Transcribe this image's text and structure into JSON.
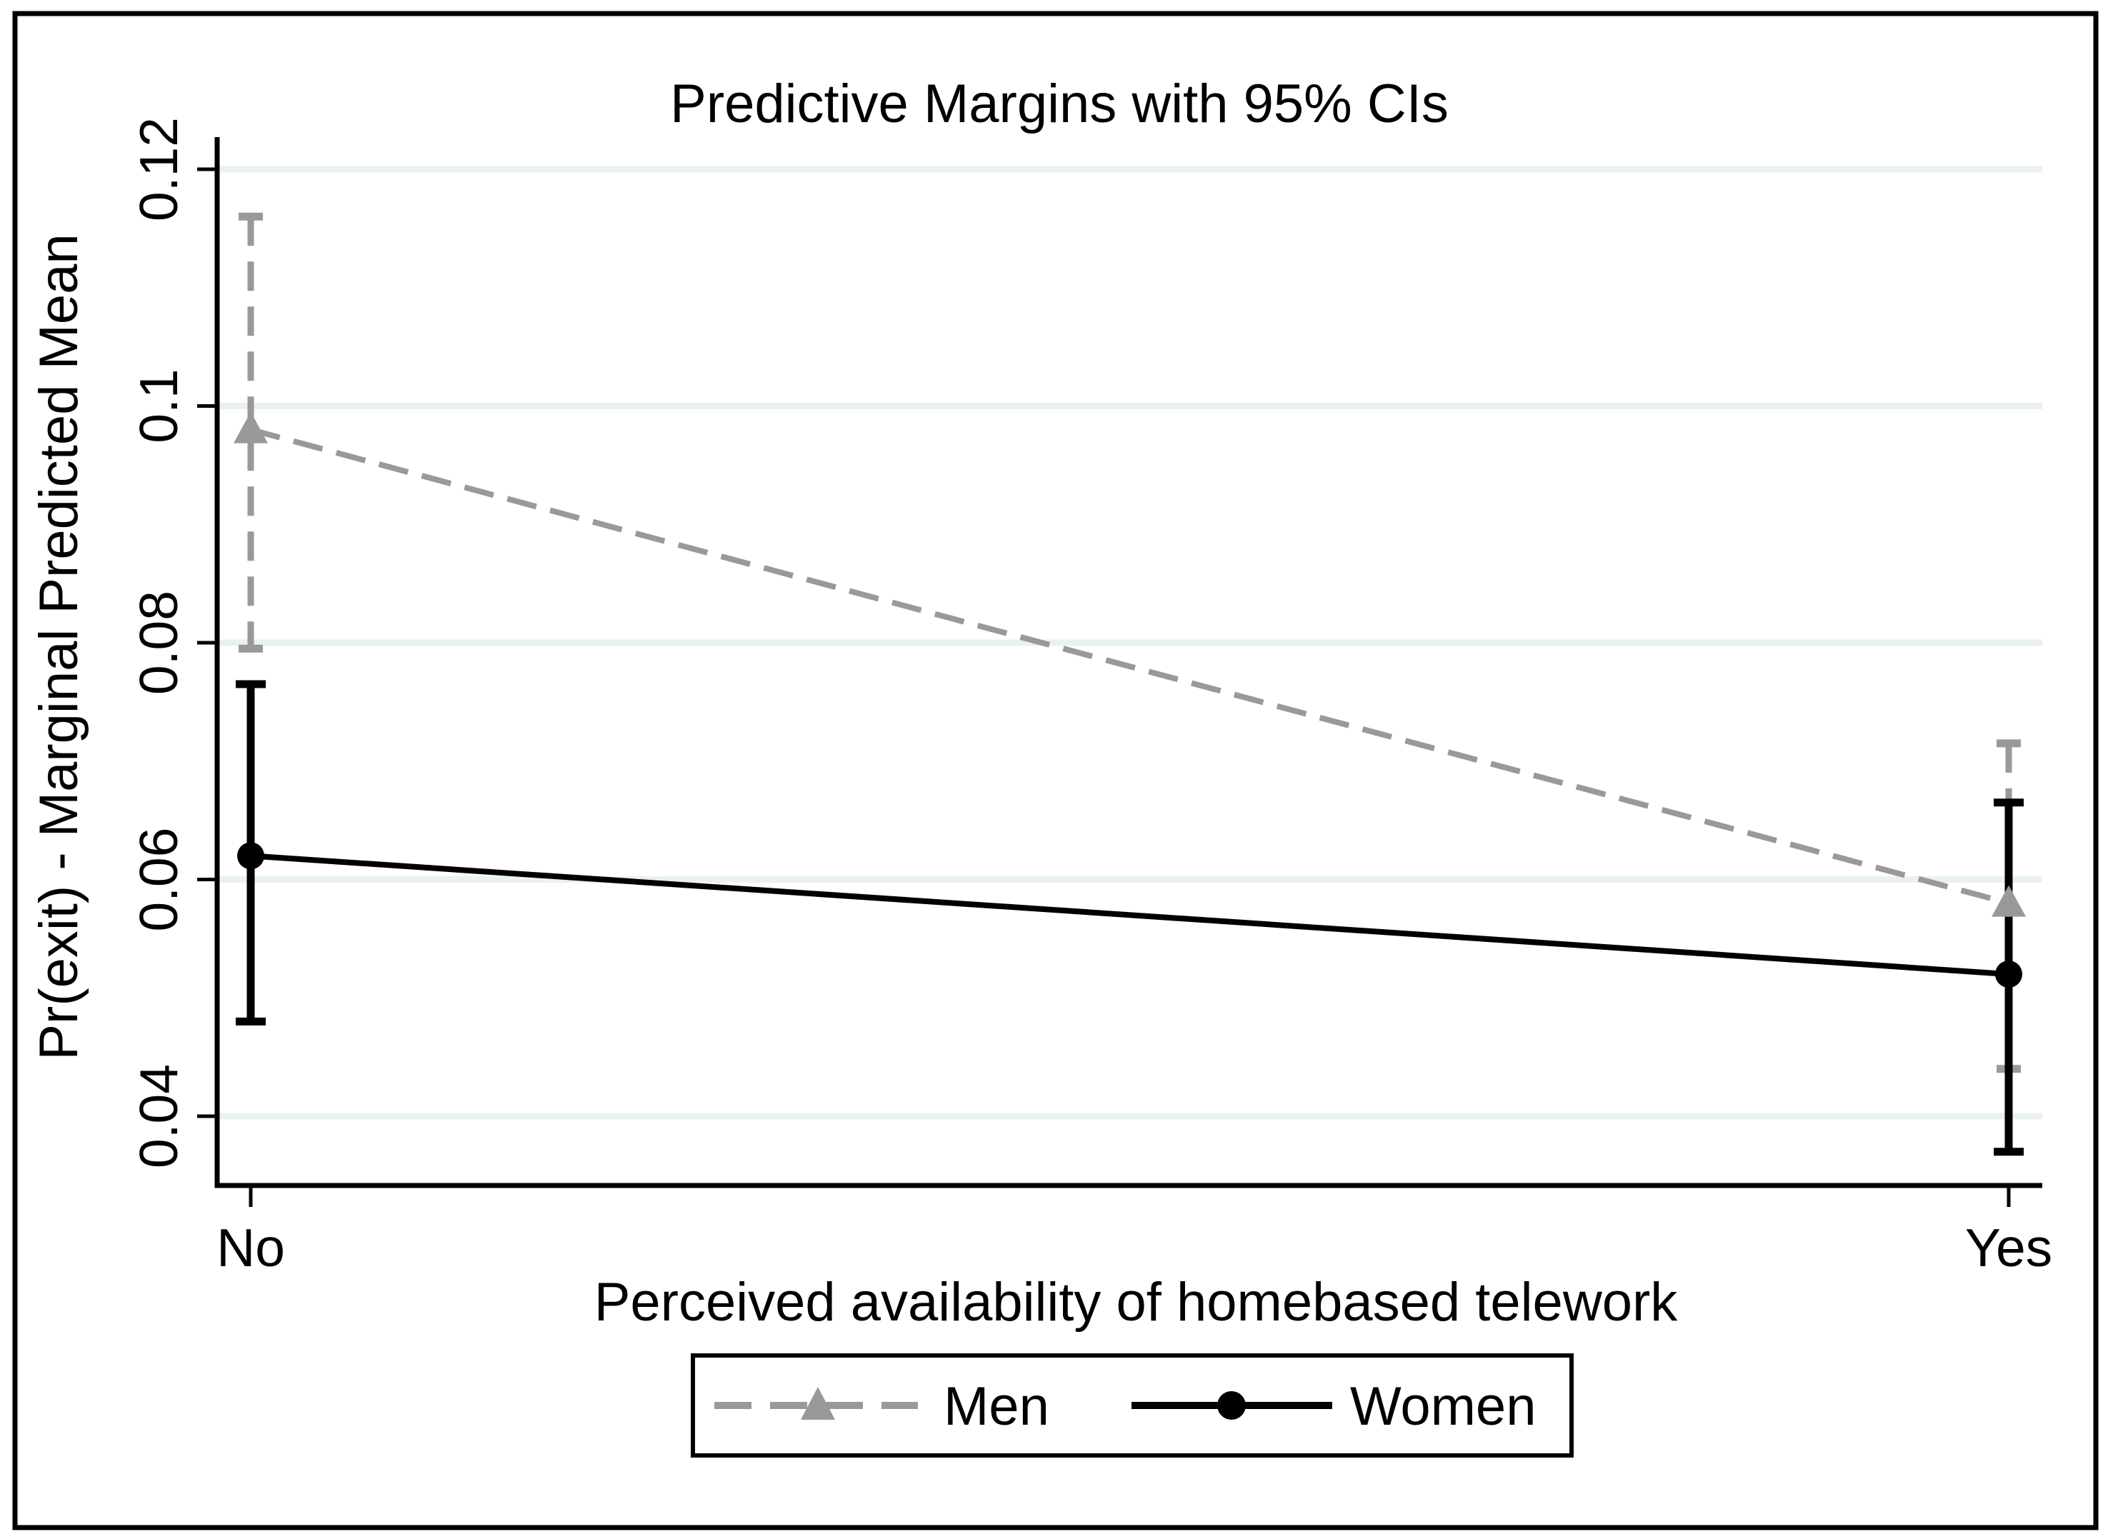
{
  "chart_data": {
    "type": "line",
    "title": "Predictive Margins with 95% CIs",
    "xlabel": "Perceived availability of homebased telework",
    "ylabel": "Pr(exit) - Marginal Predicted Mean",
    "categories": [
      "No",
      "Yes"
    ],
    "yticks": [
      0.04,
      0.06,
      0.08,
      0.1,
      0.12
    ],
    "ytick_labels": [
      "0.04",
      "0.06",
      "0.08",
      "0.1",
      "0.12"
    ],
    "ylim": [
      0.033,
      0.123
    ],
    "grid": true,
    "legend_position": "bottom-center",
    "series": [
      {
        "name": "Men",
        "color": "#999999",
        "line_style": "dashed",
        "marker": "triangle",
        "values": [
          0.098,
          0.058
        ],
        "ci_high": [
          0.116,
          0.0715
        ],
        "ci_low": [
          0.0795,
          0.044
        ]
      },
      {
        "name": "Women",
        "color": "#000000",
        "line_style": "solid",
        "marker": "circle",
        "values": [
          0.062,
          0.052
        ],
        "ci_high": [
          0.0765,
          0.0665
        ],
        "ci_low": [
          0.048,
          0.037
        ]
      }
    ]
  },
  "colors": {
    "background": "#ffffff",
    "frame": "#000000",
    "gridline": "#e9f1f2",
    "text": "#000000"
  }
}
